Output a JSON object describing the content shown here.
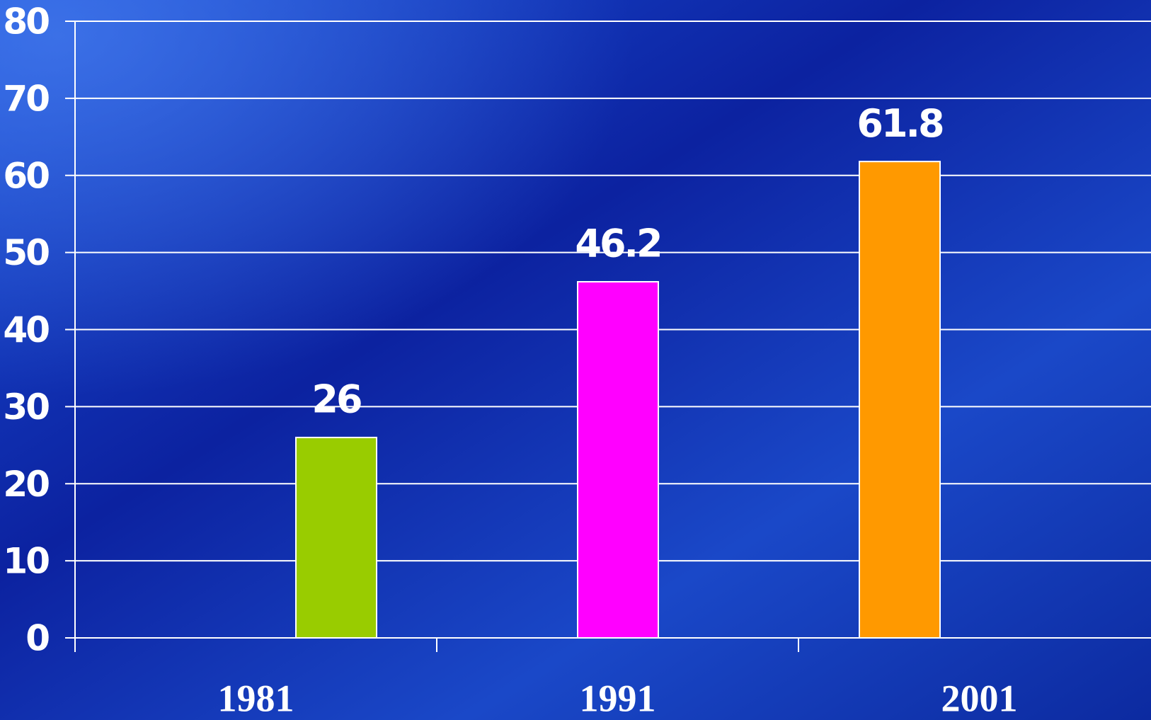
{
  "chart_data": {
    "type": "bar",
    "categories": [
      "1981",
      "1991",
      "2001"
    ],
    "values": [
      26,
      46.2,
      61.8
    ],
    "colors": [
      "#99cc00",
      "#ff00ff",
      "#ff9900"
    ],
    "ylim": [
      0,
      80
    ],
    "yticks": [
      0,
      10,
      20,
      30,
      40,
      50,
      60,
      70,
      80
    ],
    "grid": true
  }
}
